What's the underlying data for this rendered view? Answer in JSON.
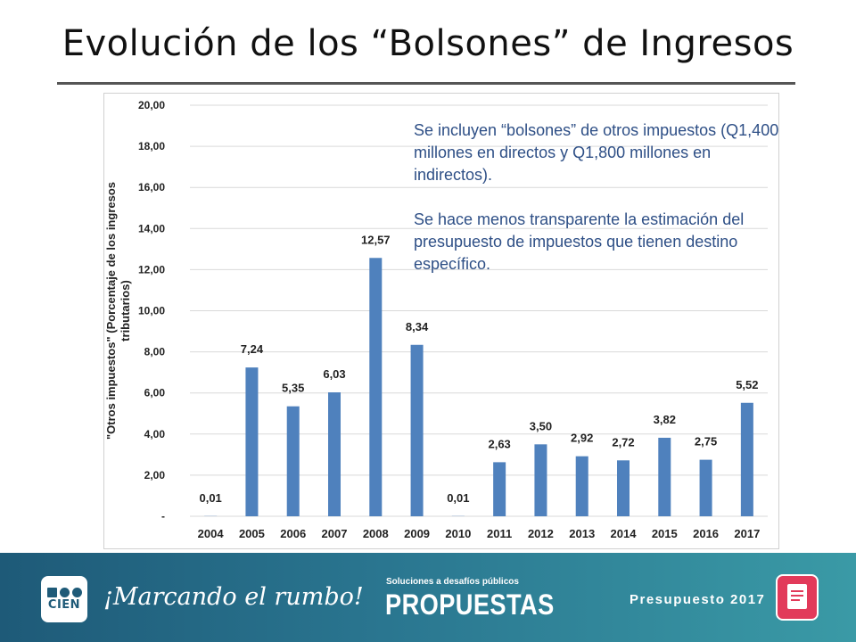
{
  "slide": {
    "title": "Evolución de los “Bolsones” de Ingresos"
  },
  "notes": [
    "Se incluyen “bolsones” de otros impuestos (Q1,400 millones en directos y Q1,800 millones en indirectos).",
    "Se hace menos transparente la estimación del presupuesto de impuestos que tienen destino específico."
  ],
  "chart_data": {
    "type": "bar",
    "categories": [
      "2004",
      "2005",
      "2006",
      "2007",
      "2008",
      "2009",
      "2010",
      "2011",
      "2012",
      "2013",
      "2014",
      "2015",
      "2016",
      "2017"
    ],
    "values": [
      0.01,
      7.24,
      5.35,
      6.03,
      12.57,
      8.34,
      0.01,
      2.63,
      3.5,
      2.92,
      2.72,
      3.82,
      2.75,
      5.52
    ],
    "data_labels": [
      "0,01",
      "7,24",
      "5,35",
      "6,03",
      "12,57",
      "8,34",
      "0,01",
      "2,63",
      "3,50",
      "2,92",
      "2,72",
      "3,82",
      "2,75",
      "5,52"
    ],
    "ylabel_line1": "\"Otros impuestos\" (Porcentaje de los ingresos",
    "ylabel_line2": "tributarios)",
    "ylim": [
      0,
      20
    ],
    "yticks": [
      0,
      2,
      4,
      6,
      8,
      10,
      12,
      14,
      16,
      18,
      20
    ],
    "ytick_labels": [
      "-",
      "2,00",
      "4,00",
      "6,00",
      "8,00",
      "10,00",
      "12,00",
      "14,00",
      "16,00",
      "18,00",
      "20,00"
    ],
    "grid": true,
    "bar_color": "#4f81bd"
  },
  "footer": {
    "logo_text": "CIEN",
    "tagline": "¡Marcando el rumbo!",
    "propuestas_small": "Soluciones a desafíos públicos",
    "propuestas_big": "PROPUESTAS",
    "budget_label": "Presupuesto 2017",
    "icon": "document-icon"
  }
}
